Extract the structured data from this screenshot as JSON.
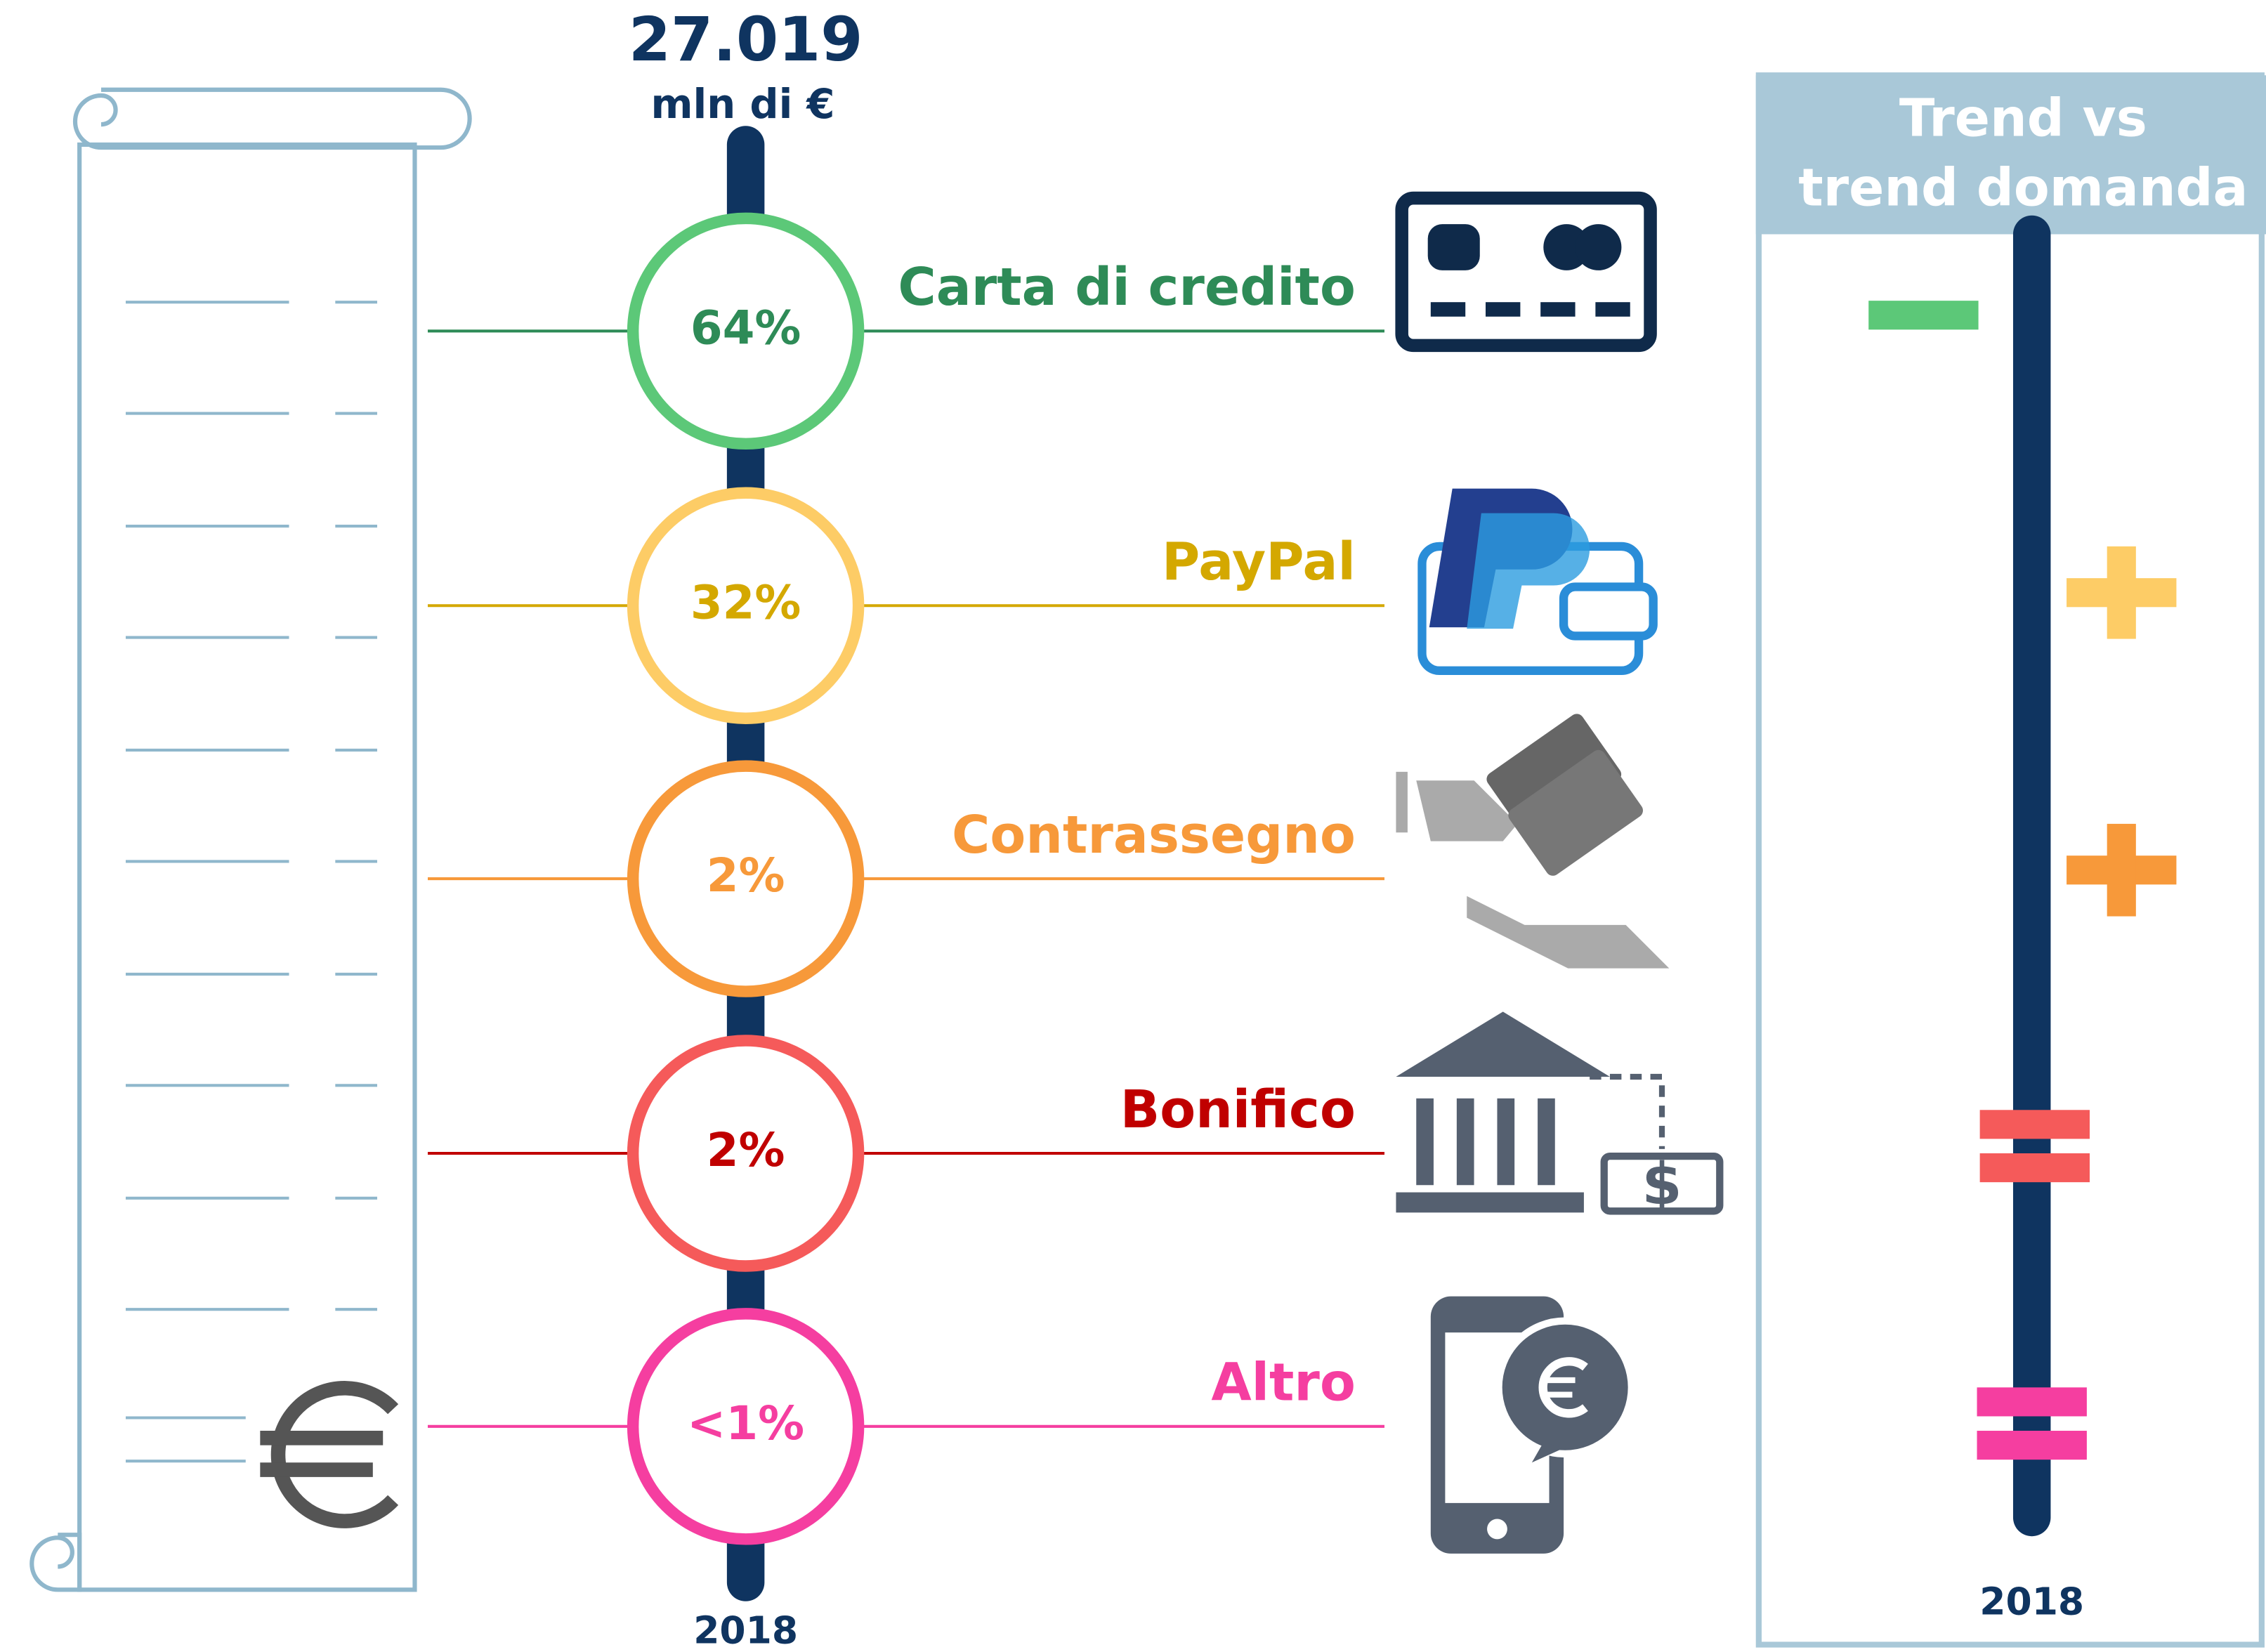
{
  "header": {
    "total": "27.019",
    "unit": "mln di €",
    "year": "2018"
  },
  "methods": [
    {
      "name": "Carta di credito",
      "share": "64%",
      "circle_color": "#5cc878",
      "text_color": "#2e8b57"
    },
    {
      "name": "PayPal",
      "share": "32%",
      "circle_color": "#fdcc66",
      "text_color": "#d4a800"
    },
    {
      "name": "Contrassegno",
      "share": "2%",
      "circle_color": "#f7993a",
      "text_color": "#f7993a"
    },
    {
      "name": "Bonifico",
      "share": "2%",
      "circle_color": "#f55a5a",
      "text_color": "#c00000"
    },
    {
      "name": "Altro",
      "share": "<1%",
      "circle_color": "#f53ea0",
      "text_color": "#f53ea0"
    }
  ],
  "trend": {
    "title_line1": "Trend vs",
    "title_line2": "trend domanda",
    "year": "2018"
  }
}
